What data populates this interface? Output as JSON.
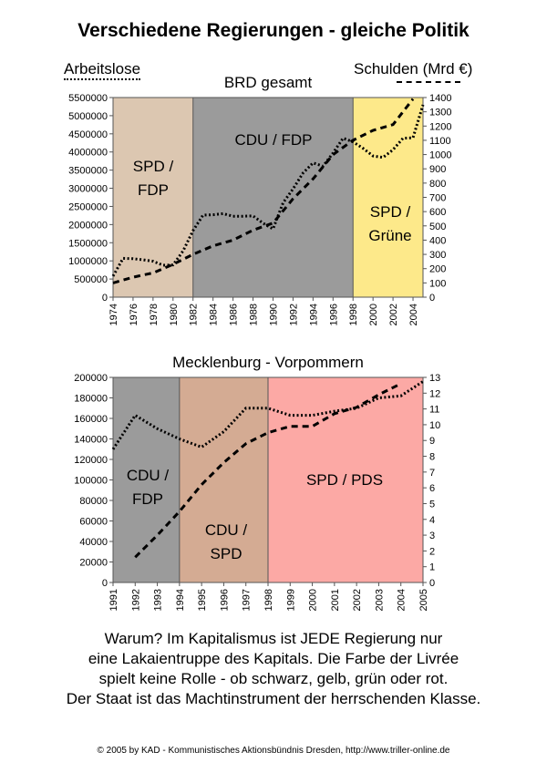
{
  "title": "Verschiedene Regierungen - gleiche Politik",
  "legend": {
    "left_label": "Arbeitslose",
    "right_label": "Schulden (Mrd €)"
  },
  "colors": {
    "spd_fdp": "#dcc7b1",
    "cdu_fdp": "#9b9b9b",
    "spd_gruene": "#fde98a",
    "cdu_spd": "#d4ab93",
    "spd_pds": "#fca9a5"
  },
  "chart_data": [
    {
      "type": "line",
      "title": "BRD gesamt",
      "x_ticks": [
        "1974",
        "1976",
        "1978",
        "1980",
        "1982",
        "1984",
        "1986",
        "1988",
        "1990",
        "1992",
        "1994",
        "1996",
        "1998",
        "2000",
        "2002",
        "2004"
      ],
      "xlim": [
        1974,
        2005
      ],
      "y_left": {
        "ylim": [
          0,
          5500000
        ],
        "ticks": [
          "0",
          "500000",
          "1000000",
          "1500000",
          "2000000",
          "2500000",
          "3000000",
          "3500000",
          "4000000",
          "4500000",
          "5000000",
          "5500000"
        ]
      },
      "y_right": {
        "ylim": [
          0,
          1400
        ],
        "ticks": [
          "0",
          "100",
          "200",
          "300",
          "400",
          "500",
          "600",
          "700",
          "800",
          "900",
          "1000",
          "1100",
          "1200",
          "1300",
          "1400"
        ]
      },
      "periods": [
        {
          "label_lines": [
            "SPD /",
            "FDP"
          ],
          "start": 1974,
          "end": 1982,
          "color": "#dcc7b1"
        },
        {
          "label_lines": [
            "CDU / FDP"
          ],
          "start": 1982,
          "end": 1998,
          "color": "#9b9b9b"
        },
        {
          "label_lines": [
            "SPD /",
            "Grüne"
          ],
          "start": 1998,
          "end": 2005,
          "color": "#fde98a"
        }
      ],
      "series": [
        {
          "axis": "left",
          "style": "dotted",
          "x": [
            1974,
            1975,
            1976,
            1977,
            1978,
            1979,
            1980,
            1981,
            1982,
            1983,
            1984,
            1985,
            1986,
            1987,
            1988,
            1989,
            1990,
            1991,
            1992,
            1993,
            1994,
            1995,
            1996,
            1997,
            1998,
            1999,
            2000,
            2001,
            2002,
            2003,
            2004,
            2005
          ],
          "values": [
            580000,
            1070000,
            1060000,
            1030000,
            990000,
            880000,
            890000,
            1270000,
            1830000,
            2260000,
            2270000,
            2300000,
            2230000,
            2230000,
            2240000,
            2040000,
            1880000,
            2600000,
            2980000,
            3420000,
            3700000,
            3610000,
            3970000,
            4380000,
            4280000,
            4100000,
            3890000,
            3850000,
            4060000,
            4380000,
            4390000,
            5300000
          ]
        },
        {
          "axis": "right",
          "style": "dashed",
          "x": [
            1974,
            1976,
            1978,
            1980,
            1982,
            1984,
            1986,
            1988,
            1990,
            1992,
            1994,
            1996,
            1998,
            2000,
            2002,
            2004
          ],
          "values": [
            100,
            140,
            170,
            230,
            300,
            360,
            400,
            470,
            520,
            690,
            830,
            1000,
            1100,
            1170,
            1210,
            1390
          ]
        }
      ]
    },
    {
      "type": "line",
      "title": "Mecklenburg - Vorpommern",
      "x_ticks": [
        "1991",
        "1992",
        "1993",
        "1994",
        "1995",
        "1996",
        "1997",
        "1998",
        "1999",
        "2000",
        "2001",
        "2002",
        "2003",
        "2004",
        "2005"
      ],
      "xlim": [
        1991,
        2005
      ],
      "y_left": {
        "ylim": [
          0,
          200000
        ],
        "ticks": [
          "0",
          "20000",
          "40000",
          "60000",
          "80000",
          "100000",
          "120000",
          "140000",
          "160000",
          "180000",
          "200000"
        ]
      },
      "y_right": {
        "ylim": [
          0,
          13
        ],
        "ticks": [
          "0",
          "1",
          "2",
          "3",
          "4",
          "5",
          "6",
          "7",
          "8",
          "9",
          "10",
          "11",
          "12",
          "13"
        ]
      },
      "periods": [
        {
          "label_lines": [
            "CDU /",
            "FDP"
          ],
          "start": 1991,
          "end": 1994,
          "color": "#9b9b9b"
        },
        {
          "label_lines": [
            "CDU /",
            "SPD"
          ],
          "start": 1994,
          "end": 1998,
          "color": "#d4ab93"
        },
        {
          "label_lines": [
            "SPD / PDS"
          ],
          "start": 1998,
          "end": 2005,
          "color": "#fca9a5"
        }
      ],
      "series": [
        {
          "axis": "left",
          "style": "dotted",
          "x": [
            1991,
            1992,
            1993,
            1994,
            1995,
            1996,
            1997,
            1998,
            1999,
            2000,
            2001,
            2002,
            2003,
            2004,
            2005
          ],
          "values": [
            130000,
            163000,
            150000,
            140000,
            132000,
            147000,
            170000,
            170000,
            163000,
            163000,
            167000,
            170000,
            180000,
            182000,
            196000
          ]
        },
        {
          "axis": "right",
          "style": "dashed",
          "x": [
            1992,
            1993,
            1994,
            1995,
            1996,
            1997,
            1998,
            1999,
            2000,
            2001,
            2002,
            2003,
            2004
          ],
          "values": [
            1.6,
            3.0,
            4.5,
            6.2,
            7.6,
            8.8,
            9.5,
            9.9,
            9.9,
            10.7,
            11.1,
            11.9,
            12.6
          ]
        }
      ]
    }
  ],
  "caption_lines": [
    "Warum? Im Kapitalismus ist JEDE Regierung nur",
    "eine Lakaientruppe des Kapitals. Die Farbe der Livrée",
    "spielt keine Rolle - ob schwarz, gelb, grün oder rot.",
    "Der Staat ist das Machtinstrument der herrschenden Klasse."
  ],
  "footer": "© 2005 by KAD - Kommunistisches Aktionsbündnis Dresden, http://www.triller-online.de"
}
